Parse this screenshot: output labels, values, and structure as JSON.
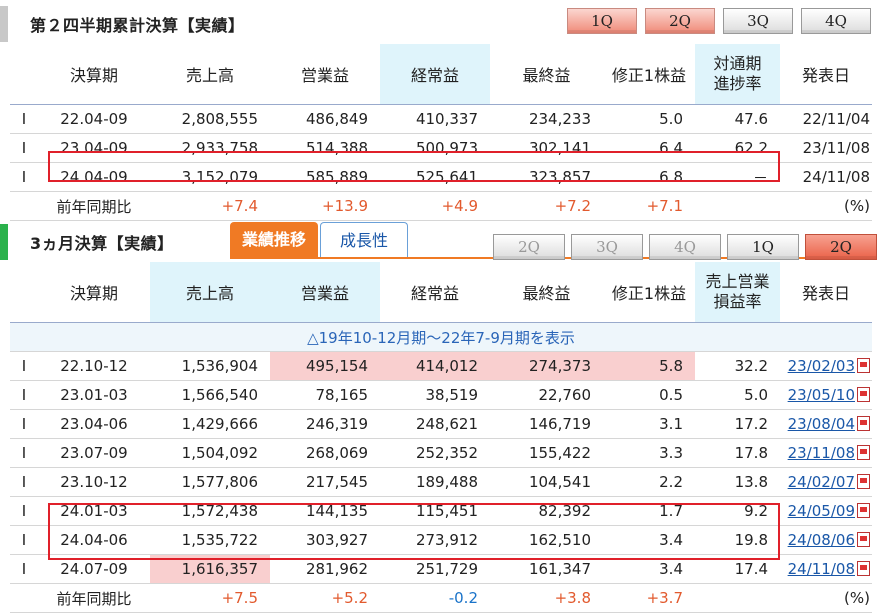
{
  "section1": {
    "title": "第２四半期累計決算【実績】",
    "quarter_tabs": [
      "1Q",
      "2Q",
      "3Q",
      "4Q"
    ],
    "headers": [
      "決算期",
      "売上高",
      "営業益",
      "経常益",
      "最終益",
      "修正1株益",
      "対通期進捗率",
      "発表日"
    ],
    "rows": [
      {
        "mark": "I",
        "period": "22.04-09",
        "sales": "2,808,555",
        "op": "486,849",
        "ord": "410,337",
        "net": "234,233",
        "eps": "5.0",
        "prog": "47.6",
        "date": "22/11/04"
      },
      {
        "mark": "I",
        "period": "23.04-09",
        "sales": "2,933,758",
        "op": "514,388",
        "ord": "500,973",
        "net": "302,141",
        "eps": "6.4",
        "prog": "62.2",
        "date": "23/11/08"
      },
      {
        "mark": "I",
        "period": "24.04-09",
        "sales": "3,152,079",
        "op": "585,889",
        "ord": "525,641",
        "net": "323,857",
        "eps": "6.8",
        "prog": "－",
        "date": "24/11/08"
      }
    ],
    "yoy": {
      "label": "前年同期比",
      "sales": "+7.4",
      "op": "+13.9",
      "ord": "+4.9",
      "net": "+7.2",
      "eps": "+7.1",
      "unit": "(%)"
    }
  },
  "section2": {
    "title": "3ヵ月決算【実績】",
    "tab_active": "業績推移",
    "tab_other": "成長性",
    "quarter_tabs": [
      "2Q",
      "3Q",
      "4Q",
      "1Q",
      "2Q"
    ],
    "headers": [
      "決算期",
      "売上高",
      "営業益",
      "経常益",
      "最終益",
      "修正1株益",
      "売上営業損益率",
      "発表日"
    ],
    "notice": "△19年10-12月期～22年7-9月期を表示",
    "rows": [
      {
        "mark": "I",
        "period": "22.10-12",
        "sales": "1,536,904",
        "op": "495,154",
        "ord": "414,012",
        "net": "274,373",
        "eps": "5.8",
        "rate": "32.2",
        "date": "23/02/03"
      },
      {
        "mark": "I",
        "period": "23.01-03",
        "sales": "1,566,540",
        "op": "78,165",
        "ord": "38,519",
        "net": "22,760",
        "eps": "0.5",
        "rate": "5.0",
        "date": "23/05/10"
      },
      {
        "mark": "I",
        "period": "23.04-06",
        "sales": "1,429,666",
        "op": "246,319",
        "ord": "248,621",
        "net": "146,719",
        "eps": "3.1",
        "rate": "17.2",
        "date": "23/08/04"
      },
      {
        "mark": "I",
        "period": "23.07-09",
        "sales": "1,504,092",
        "op": "268,069",
        "ord": "252,352",
        "net": "155,422",
        "eps": "3.3",
        "rate": "17.8",
        "date": "23/11/08"
      },
      {
        "mark": "I",
        "period": "23.10-12",
        "sales": "1,577,806",
        "op": "217,545",
        "ord": "189,488",
        "net": "104,541",
        "eps": "2.2",
        "rate": "13.8",
        "date": "24/02/07"
      },
      {
        "mark": "I",
        "period": "24.01-03",
        "sales": "1,572,438",
        "op": "144,135",
        "ord": "115,451",
        "net": "82,392",
        "eps": "1.7",
        "rate": "9.2",
        "date": "24/05/09"
      },
      {
        "mark": "I",
        "period": "24.04-06",
        "sales": "1,535,722",
        "op": "303,927",
        "ord": "273,912",
        "net": "162,510",
        "eps": "3.4",
        "rate": "19.8",
        "date": "24/08/06"
      },
      {
        "mark": "I",
        "period": "24.07-09",
        "sales": "1,616,357",
        "op": "281,962",
        "ord": "251,729",
        "net": "161,347",
        "eps": "3.4",
        "rate": "17.4",
        "date": "24/11/08"
      }
    ],
    "yoy": {
      "label": "前年同期比",
      "sales": "+7.5",
      "op": "+5.2",
      "ord": "-0.2",
      "net": "+3.8",
      "eps": "+3.7",
      "unit": "(%)"
    }
  }
}
